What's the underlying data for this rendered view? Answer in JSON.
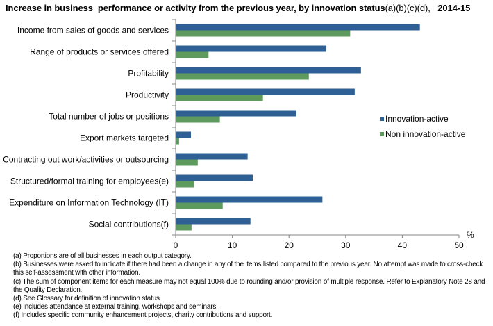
{
  "title": {
    "main": "Increase in business  performance or activity from the previous year, by innovation status",
    "suffix": "(a)(b)(c)(d),",
    "year": "2014-15"
  },
  "chart_data": {
    "type": "bar",
    "orientation": "horizontal",
    "title": "Increase in business  performance or activity from the previous year, by innovation status(a)(b)(c)(d),  2014-15",
    "xlabel": "%",
    "ylabel": "",
    "xlim": [
      0,
      50
    ],
    "xticks": [
      0,
      10,
      20,
      30,
      40,
      50
    ],
    "grid": false,
    "legend_position": "right",
    "categories": [
      "Income from sales of goods and services",
      "Range of products or services offered",
      "Profitability",
      "Productivity",
      "Total number of jobs or positions",
      "Export markets targeted",
      "Contracting out work/activities or outsourcing",
      "Structured/formal training for employees(e)",
      "Expenditure on Information Technology (IT)",
      "Social contributions(f)"
    ],
    "series": [
      {
        "name": "Innovation-active",
        "color": "#2e6096",
        "values": [
          43.1,
          26.6,
          32.7,
          31.6,
          21.3,
          2.7,
          12.7,
          13.6,
          25.9,
          13.2
        ]
      },
      {
        "name": "Non innovation-active",
        "color": "#5e995e",
        "values": [
          30.8,
          5.8,
          23.5,
          15.4,
          7.8,
          0.6,
          3.9,
          3.3,
          8.3,
          2.8
        ]
      }
    ]
  },
  "notes": [
    "(a) Proportions are of all businesses in each output category.",
    "(b) Businesses were asked to indicate if there  had been a change in any of the items  listed compared to the previous year. No attempt was made to cross-check this self-assessment with other information.",
    "(c) The sum of component items  for each measure may not equal 100% due to rounding and/or provision of multiple response. Refer to Explanatory Note 28 and the Quality Declaration.",
    "(d) See Glossary for definition of innovation status",
    "(e) Includes attendance at external training,  workshops and seminars.",
    "(f) Includes specific community enhancement projects, charity contributions and support."
  ]
}
